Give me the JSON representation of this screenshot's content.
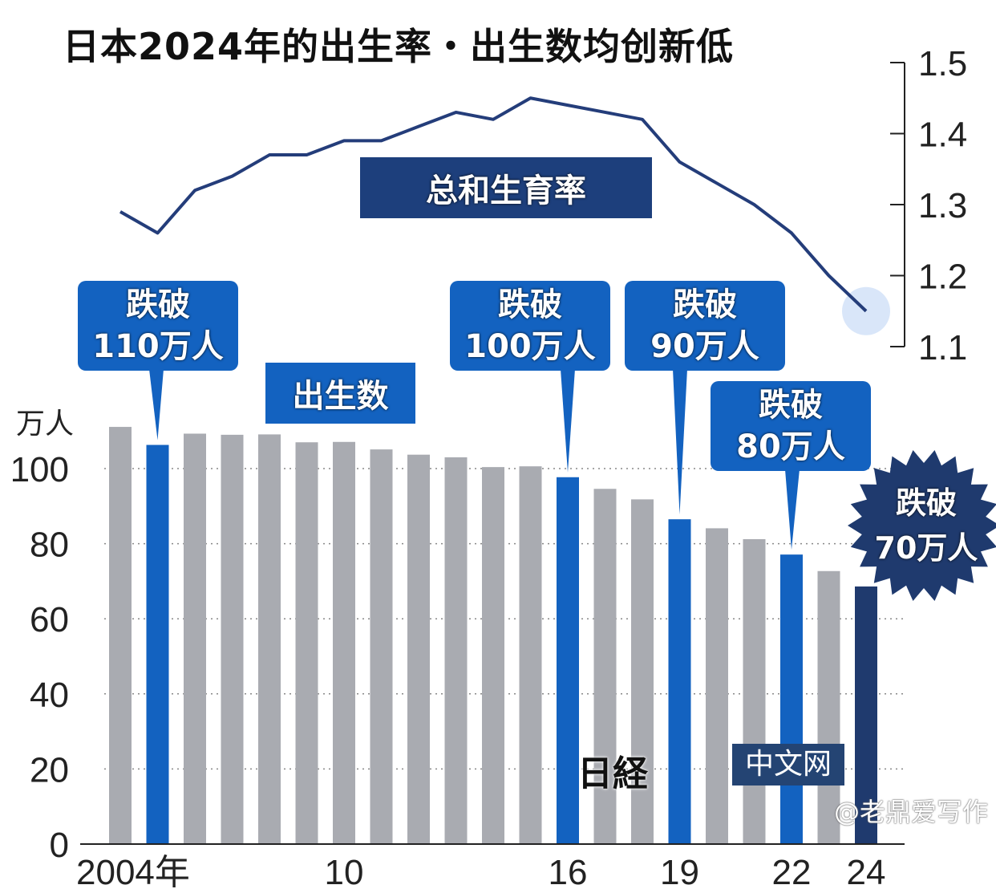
{
  "chart_data": {
    "type": "bar+line",
    "title": "日本2024年的出生率・出生数均创新低",
    "categories": [
      "2004",
      "2005",
      "2006",
      "2007",
      "2008",
      "2009",
      "2010",
      "2011",
      "2012",
      "2013",
      "2014",
      "2015",
      "2016",
      "2017",
      "2018",
      "2019",
      "2020",
      "2021",
      "2022",
      "2023",
      "2024"
    ],
    "x_tick_labels": [
      {
        "year": "2004",
        "label": "2004年"
      },
      {
        "year": "2010",
        "label": "10"
      },
      {
        "year": "2016",
        "label": "16"
      },
      {
        "year": "2019",
        "label": "19"
      },
      {
        "year": "2022",
        "label": "22"
      },
      {
        "year": "2024",
        "label": "24"
      }
    ],
    "bars": {
      "name": "出生数",
      "unit": "万人",
      "values": [
        111.1,
        106.3,
        109.3,
        109.0,
        109.1,
        107.0,
        107.1,
        105.1,
        103.7,
        103.0,
        100.4,
        100.6,
        97.7,
        94.6,
        91.8,
        86.5,
        84.1,
        81.2,
        77.1,
        72.7,
        68.6
      ],
      "highlight_years": [
        "2005",
        "2016",
        "2019",
        "2022"
      ],
      "latest_year": "2024"
    },
    "line": {
      "name": "总和生育率",
      "values": [
        1.29,
        1.26,
        1.32,
        1.34,
        1.37,
        1.37,
        1.39,
        1.39,
        1.41,
        1.43,
        1.42,
        1.45,
        1.44,
        1.43,
        1.42,
        1.36,
        1.33,
        1.3,
        1.26,
        1.2,
        1.15
      ]
    },
    "left_axis": {
      "label": "万人",
      "ylim": [
        0,
        110
      ],
      "ticks": [
        "0",
        "20",
        "40",
        "60",
        "80",
        "100"
      ]
    },
    "right_axis": {
      "ylim": [
        1.1,
        1.5
      ],
      "ticks": [
        "1.1",
        "1.2",
        "1.3",
        "1.4",
        "1.5"
      ]
    },
    "grid": "dotted horizontal",
    "annotations": [
      {
        "year": "2005",
        "line1": "跌破",
        "line2": "110万人"
      },
      {
        "year": "2016",
        "line1": "跌破",
        "line2": "100万人"
      },
      {
        "year": "2019",
        "line1": "跌破",
        "line2": "90万人"
      },
      {
        "year": "2022",
        "line1": "跌破",
        "line2": "80万人"
      },
      {
        "year": "2024",
        "line1": "跌破",
        "line2": "70万人"
      }
    ],
    "colors": {
      "gray_bar": "#a9abb1",
      "highlight_bar": "#1362c0",
      "latest_bar": "#1f3a6e",
      "line": "#243d7a"
    }
  },
  "watermarks": {
    "logo": "日経",
    "logo_tag": "中文网",
    "author": "@老鼎爱写作"
  }
}
